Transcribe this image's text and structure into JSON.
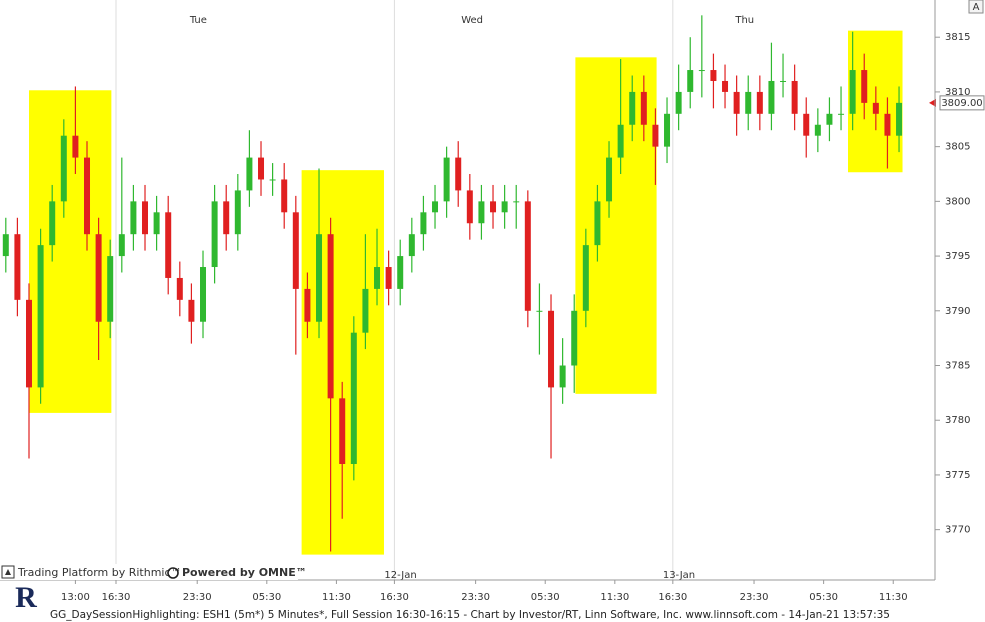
{
  "chart_data": {
    "type": "candlestick",
    "footer": "GG_DaySessionHighlighting: ESH1 (5m*) 5 Minutes*, Full Session 16:30-16:15 - Chart by Investor/RT, Linn Software, Inc. www.linnsoft.com - 14-Jan-21 13:57:35",
    "branding": [
      "Trading Platform by Rithmic™",
      "Powered by OMNE™"
    ],
    "logo": "R",
    "button": "A",
    "up_color": "#2fb82f",
    "down_color": "#e02020",
    "highlight_color": "#ffff00",
    "xlim": [
      6.5,
      87.1
    ],
    "ylim": [
      3765.4,
      3818.4
    ],
    "yticks": [
      3770,
      3775,
      3780,
      3785,
      3790,
      3795,
      3800,
      3805,
      3810,
      3815
    ],
    "xticks": [
      {
        "value": 13,
        "label": "13:00"
      },
      {
        "value": 16.5,
        "label": "16:30"
      },
      {
        "value": 23.5,
        "label": "23:30"
      },
      {
        "value": 29.5,
        "label": "05:30"
      },
      {
        "value": 35.5,
        "label": "11:30"
      },
      {
        "value": 40.5,
        "label": "16:30"
      },
      {
        "value": 47.5,
        "label": "23:30"
      },
      {
        "value": 53.5,
        "label": "05:30"
      },
      {
        "value": 59.5,
        "label": "11:30"
      },
      {
        "value": 64.5,
        "label": "16:30"
      },
      {
        "value": 71.5,
        "label": "23:30"
      },
      {
        "value": 77.5,
        "label": "05:30"
      },
      {
        "value": 83.5,
        "label": "11:30"
      }
    ],
    "session_starts": [
      16.5,
      40.5,
      64.5
    ],
    "date_labels": [
      {
        "value": 40.5,
        "label": "12-Jan"
      },
      {
        "value": 64.5,
        "label": "13-Jan"
      }
    ],
    "day_labels": [
      {
        "value": 23.6,
        "label": "Tue"
      },
      {
        "value": 47.2,
        "label": "Wed"
      },
      {
        "value": 70.7,
        "label": "Thu"
      }
    ],
    "last_price": {
      "value": 3809,
      "label": "3809.00"
    },
    "highlights": [
      {
        "x": [
          9.0,
          16.1
        ],
        "y": [
          3780.67,
          3810.15
        ]
      },
      {
        "x": [
          32.5,
          39.6
        ],
        "y": [
          3767.72,
          3802.85
        ]
      },
      {
        "x": [
          56.1,
          63.1
        ],
        "y": [
          3782.41,
          3813.16
        ]
      },
      {
        "x": [
          79.6,
          84.3
        ],
        "y": [
          3802.66,
          3815.6
        ]
      }
    ],
    "x": [
      7,
      8,
      9,
      10,
      11,
      12,
      13,
      14,
      15,
      16,
      17,
      18,
      19,
      20,
      21,
      22,
      23,
      24,
      25,
      26,
      27,
      28,
      29,
      30,
      31,
      32,
      33,
      34,
      35,
      36,
      37,
      38,
      39,
      40,
      41,
      42,
      43,
      44,
      45,
      46,
      47,
      48,
      49,
      50,
      51,
      52,
      53,
      54,
      55,
      56,
      57,
      58,
      59,
      60,
      61,
      62,
      63,
      64,
      65,
      66,
      67,
      68,
      69,
      70,
      71,
      72,
      73,
      74,
      75,
      76,
      77,
      78,
      79,
      80,
      81,
      82,
      83,
      84
    ],
    "open": [
      3795,
      3797,
      3791,
      3783,
      3796,
      3800,
      3806,
      3804,
      3797,
      3789,
      3795,
      3797,
      3800,
      3797,
      3799,
      3793,
      3791,
      3789,
      3794,
      3800,
      3797,
      3801,
      3804,
      3802,
      3802,
      3799,
      3792,
      3789,
      3797,
      3782,
      3776,
      3788,
      3792,
      3794,
      3792,
      3795,
      3797,
      3799,
      3800,
      3804,
      3801,
      3798,
      3800,
      3799,
      3800,
      3800,
      3790,
      3790,
      3783,
      3785,
      3790,
      3796,
      3800,
      3804,
      3807,
      3810,
      3807,
      3805,
      3808,
      3810,
      3812,
      3812,
      3811,
      3810,
      3808,
      3810,
      3808,
      3811,
      3811,
      3808,
      3806,
      3807,
      3808,
      3808,
      3812,
      3809,
      3808,
      3806
    ],
    "high": [
      3798.5,
      3798.5,
      3792.5,
      3797.5,
      3801.5,
      3807.5,
      3810.5,
      3805.5,
      3798.5,
      3796.5,
      3804,
      3801.5,
      3801.5,
      3800.5,
      3800.5,
      3794.5,
      3792.5,
      3795.5,
      3801.5,
      3801.5,
      3802.5,
      3806.5,
      3805.5,
      3803.5,
      3803.5,
      3800.5,
      3793.5,
      3803,
      3798.5,
      3783.5,
      3789.5,
      3797,
      3797.5,
      3795.5,
      3796.5,
      3798.5,
      3800.5,
      3801.5,
      3805,
      3805.5,
      3802.5,
      3801.5,
      3801.5,
      3801.5,
      3801.5,
      3801,
      3792.5,
      3791.5,
      3787.5,
      3791.5,
      3797.5,
      3801.5,
      3805.5,
      3813,
      3811.5,
      3811.5,
      3808.5,
      3809.5,
      3812.5,
      3815,
      3817,
      3813.5,
      3812.5,
      3811.5,
      3811.5,
      3811.5,
      3814.5,
      3813.5,
      3812.5,
      3809.5,
      3808.5,
      3809.5,
      3810.5,
      3815.5,
      3813.5,
      3810.5,
      3809.5,
      3810.5
    ],
    "low": [
      3793.5,
      3789.5,
      3776.5,
      3781.5,
      3794.5,
      3798.5,
      3802.5,
      3795.5,
      3785.5,
      3787.5,
      3793.5,
      3795.5,
      3795.5,
      3795.5,
      3791.5,
      3789.5,
      3787,
      3787.5,
      3792.5,
      3795.5,
      3795.5,
      3799.5,
      3800.5,
      3800.5,
      3797.5,
      3786,
      3787.5,
      3787.5,
      3768,
      3771,
      3774.5,
      3786.5,
      3790.5,
      3790.5,
      3790.5,
      3793.5,
      3795.5,
      3797.5,
      3798.5,
      3799.5,
      3796.5,
      3796.5,
      3797.5,
      3797.5,
      3797.5,
      3788.5,
      3786,
      3776.5,
      3781.5,
      3782.5,
      3788.5,
      3794.5,
      3798.5,
      3802.5,
      3805.5,
      3805.5,
      3801.5,
      3803.5,
      3806.5,
      3808.5,
      3809.5,
      3808.5,
      3808.5,
      3806,
      3806.5,
      3806.5,
      3806.5,
      3809.5,
      3806.5,
      3804,
      3804.5,
      3805.5,
      3806.5,
      3806.5,
      3807.5,
      3806.5,
      3803,
      3804.5
    ],
    "close": [
      3797,
      3791,
      3783,
      3796,
      3800,
      3806,
      3804,
      3797,
      3789,
      3795,
      3797,
      3800,
      3797,
      3799,
      3793,
      3791,
      3789,
      3794,
      3800,
      3797,
      3801,
      3804,
      3802,
      3802,
      3799,
      3792,
      3789,
      3797,
      3782,
      3776,
      3788,
      3792,
      3794,
      3792,
      3795,
      3797,
      3799,
      3800,
      3804,
      3801,
      3798,
      3800,
      3799,
      3800,
      3800,
      3790,
      3790,
      3783,
      3785,
      3790,
      3796,
      3800,
      3804,
      3807,
      3810,
      3807,
      3805,
      3808,
      3810,
      3812,
      3812,
      3811,
      3810,
      3808,
      3810,
      3808,
      3811,
      3811,
      3808,
      3806,
      3807,
      3808,
      3808,
      3812,
      3809,
      3808,
      3806,
      3809
    ]
  }
}
